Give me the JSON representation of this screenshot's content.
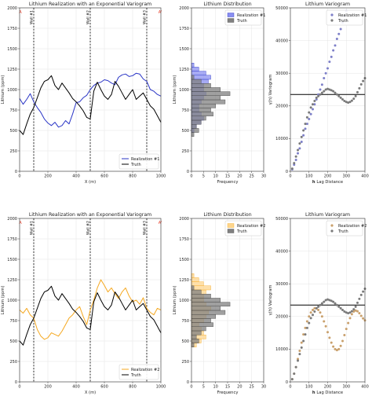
{
  "colors": {
    "truth": "#000000",
    "truth_hist": "#808080",
    "real1": "#2a35c6",
    "real1_hist": "#8a8ff0",
    "real1_vario": "#7d7fc8",
    "real2": "#f5a820",
    "real2_hist": "#fdd58d",
    "real2_vario": "#c9a06c",
    "truth_vario": "#7a7a7a",
    "well_marker": "#e8402a"
  },
  "chart_data": [
    {
      "type": "line",
      "title": "Lithium Realization with an Exponential Variogram",
      "xlabel": "X (m)",
      "ylabel": "Lithium (ppm)",
      "xlim": [
        0,
        1000
      ],
      "ylim": [
        0,
        2000
      ],
      "xticks": [
        "0",
        "200",
        "400",
        "600",
        "800",
        "1000"
      ],
      "yticks": [
        "0",
        "250",
        "500",
        "750",
        "1000",
        "1250",
        "1500",
        "1750",
        "2000"
      ],
      "grid": true,
      "legend": "lower-right",
      "wells": [
        {
          "x": 100,
          "label": "Well #1"
        },
        {
          "x": 500,
          "label": "Well #2"
        },
        {
          "x": 900,
          "label": "Well #3"
        }
      ],
      "well_markers": [
        {
          "x": 5,
          "y": 1950,
          "label": "A"
        },
        {
          "x": 995,
          "y": 1950,
          "label": "A'"
        }
      ],
      "series": [
        {
          "name": "Realization #1",
          "x": [
            0,
            25,
            50,
            75,
            100,
            125,
            150,
            175,
            200,
            225,
            250,
            275,
            300,
            325,
            350,
            375,
            400,
            425,
            450,
            475,
            500,
            525,
            550,
            575,
            600,
            625,
            650,
            675,
            700,
            725,
            750,
            775,
            800,
            825,
            850,
            875,
            900,
            925,
            950,
            975,
            1000
          ],
          "y": [
            890,
            820,
            880,
            950,
            850,
            780,
            720,
            640,
            590,
            560,
            600,
            540,
            560,
            620,
            580,
            700,
            840,
            850,
            900,
            930,
            1000,
            1050,
            1080,
            1090,
            1120,
            1110,
            1080,
            1060,
            1150,
            1180,
            1190,
            1160,
            1170,
            1200,
            1190,
            1130,
            1100,
            1000,
            980,
            940,
            920
          ]
        },
        {
          "name": "Truth",
          "x": [
            0,
            25,
            50,
            75,
            100,
            125,
            150,
            175,
            200,
            225,
            250,
            275,
            300,
            325,
            350,
            375,
            400,
            425,
            450,
            475,
            500,
            525,
            550,
            575,
            600,
            625,
            650,
            675,
            700,
            725,
            750,
            775,
            800,
            825,
            850,
            875,
            900,
            925,
            950,
            975,
            1000
          ],
          "y": [
            500,
            450,
            580,
            700,
            780,
            900,
            1020,
            1100,
            1120,
            1170,
            1050,
            1000,
            1080,
            1020,
            960,
            890,
            850,
            800,
            740,
            660,
            640,
            980,
            1090,
            1000,
            920,
            880,
            940,
            1100,
            1040,
            960,
            880,
            940,
            1000,
            880,
            920,
            960,
            880,
            800,
            760,
            680,
            600
          ]
        }
      ]
    },
    {
      "type": "bar",
      "title": "Lithium Distribution",
      "xlabel": "Frequency",
      "ylabel": "Lithium (ppm)",
      "xlim": [
        0,
        30
      ],
      "ylim": [
        0,
        2000
      ],
      "xticks": [
        "0",
        "5",
        "10",
        "15",
        "20",
        "25",
        "30"
      ],
      "yticks": [
        "0",
        "250",
        "500",
        "750",
        "1000",
        "1250",
        "1500",
        "1750",
        "2000"
      ],
      "legend": "top-right",
      "bin_width": 50,
      "series": [
        {
          "name": "Realization #1",
          "bins": [
            500,
            550,
            600,
            650,
            700,
            750,
            800,
            850,
            900,
            950,
            1000,
            1050,
            1100,
            1150,
            1200,
            1250,
            1300
          ],
          "counts": [
            1,
            2,
            4,
            5,
            4,
            3,
            3,
            4,
            5,
            6,
            5,
            5,
            7,
            8,
            6,
            3,
            1
          ]
        },
        {
          "name": "Truth",
          "bins": [
            450,
            500,
            550,
            600,
            650,
            700,
            750,
            800,
            850,
            900,
            950,
            1000,
            1050,
            1100,
            1150
          ],
          "counts": [
            1,
            3,
            2,
            4,
            6,
            9,
            8,
            10,
            14,
            12,
            16,
            12,
            8,
            4,
            1
          ]
        }
      ]
    },
    {
      "type": "scatter",
      "title": "Lithium Variogram",
      "xlabel": "Lag Distance",
      "xlabel_prefix": "h",
      "ylabel": "γ(h) Variogram",
      "xlim": [
        0,
        400
      ],
      "ylim": [
        0,
        50000
      ],
      "xticks": [
        "0",
        "100",
        "200",
        "300",
        "400"
      ],
      "yticks": [
        "0",
        "10000",
        "20000",
        "30000",
        "40000",
        "50000"
      ],
      "sill": 23500,
      "legend": "top-right",
      "series": [
        {
          "name": "Realization #1",
          "x": [
            10,
            20,
            30,
            40,
            50,
            60,
            70,
            80,
            90,
            100,
            110,
            120,
            130,
            140,
            150,
            160,
            170,
            180,
            190,
            200,
            210,
            220,
            230,
            240,
            250,
            260,
            270,
            280,
            290,
            300
          ],
          "y": [
            600,
            2000,
            3500,
            5500,
            7000,
            9000,
            11000,
            13000,
            14500,
            16000,
            17500,
            19000,
            20500,
            22000,
            23500,
            25000,
            26500,
            28500,
            30000,
            31500,
            33500,
            35000,
            37000,
            38500,
            40500,
            42000,
            43500,
            45500,
            47500,
            49000
          ]
        },
        {
          "name": "Truth",
          "x": [
            10,
            20,
            30,
            40,
            50,
            60,
            70,
            80,
            90,
            100,
            110,
            120,
            130,
            140,
            150,
            160,
            170,
            180,
            190,
            200,
            210,
            220,
            230,
            240,
            250,
            260,
            270,
            280,
            290,
            300,
            310,
            320,
            330,
            340,
            350,
            360,
            370,
            380,
            390,
            400
          ],
          "y": [
            800,
            2500,
            4500,
            6500,
            8500,
            10500,
            12500,
            14500,
            16500,
            18000,
            19500,
            20500,
            21500,
            22500,
            23000,
            23500,
            24000,
            24500,
            25000,
            25200,
            25000,
            24800,
            24500,
            24000,
            23500,
            23000,
            22500,
            22000,
            21500,
            21200,
            21000,
            21200,
            21600,
            22200,
            23000,
            24200,
            25400,
            26600,
            27600,
            28500
          ]
        }
      ]
    },
    {
      "type": "line",
      "title": "Lithium Realization with an Exponential Variogram",
      "xlabel": "X (m)",
      "ylabel": "Lithium (ppm)",
      "xlim": [
        0,
        1000
      ],
      "ylim": [
        0,
        2000
      ],
      "xticks": [
        "0",
        "200",
        "400",
        "600",
        "800",
        "1000"
      ],
      "yticks": [
        "0",
        "250",
        "500",
        "750",
        "1000",
        "1250",
        "1500",
        "1750",
        "2000"
      ],
      "grid": true,
      "legend": "lower-right",
      "wells": [
        {
          "x": 100,
          "label": "Well #1"
        },
        {
          "x": 500,
          "label": "Well #2"
        },
        {
          "x": 900,
          "label": "Well #3"
        }
      ],
      "well_markers": [
        {
          "x": 5,
          "y": 1950,
          "label": "A"
        },
        {
          "x": 995,
          "y": 1950,
          "label": "A'"
        }
      ],
      "series": [
        {
          "name": "Realization #2",
          "x": [
            0,
            25,
            50,
            75,
            100,
            125,
            150,
            175,
            200,
            225,
            250,
            275,
            300,
            325,
            350,
            375,
            400,
            425,
            450,
            475,
            500,
            525,
            550,
            575,
            600,
            625,
            650,
            675,
            700,
            725,
            750,
            775,
            800,
            825,
            850,
            875,
            900,
            925,
            950,
            975,
            1000
          ],
          "y": [
            880,
            840,
            900,
            820,
            780,
            640,
            560,
            520,
            540,
            600,
            580,
            560,
            620,
            700,
            780,
            820,
            880,
            920,
            800,
            700,
            880,
            1000,
            1150,
            1250,
            1180,
            1100,
            1150,
            1080,
            1020,
            1100,
            1150,
            1050,
            980,
            1000,
            950,
            1030,
            900,
            850,
            820,
            900,
            880
          ]
        },
        {
          "name": "Truth",
          "x": [
            0,
            25,
            50,
            75,
            100,
            125,
            150,
            175,
            200,
            225,
            250,
            275,
            300,
            325,
            350,
            375,
            400,
            425,
            450,
            475,
            500,
            525,
            550,
            575,
            600,
            625,
            650,
            675,
            700,
            725,
            750,
            775,
            800,
            825,
            850,
            875,
            900,
            925,
            950,
            975,
            1000
          ],
          "y": [
            500,
            450,
            580,
            700,
            780,
            900,
            1020,
            1100,
            1120,
            1170,
            1050,
            1000,
            1080,
            1020,
            960,
            890,
            850,
            800,
            740,
            660,
            640,
            980,
            1090,
            1000,
            920,
            880,
            940,
            1100,
            1040,
            960,
            880,
            940,
            1000,
            880,
            920,
            960,
            880,
            800,
            760,
            680,
            600
          ]
        }
      ]
    },
    {
      "type": "bar",
      "title": "Lithium Distribution",
      "xlabel": "Frequency",
      "ylabel": "Lithium (ppm)",
      "xlim": [
        0,
        30
      ],
      "ylim": [
        0,
        2000
      ],
      "xticks": [
        "0",
        "5",
        "10",
        "15",
        "20",
        "25",
        "30"
      ],
      "yticks": [
        "0",
        "250",
        "500",
        "750",
        "1000",
        "1250",
        "1500",
        "1750",
        "2000"
      ],
      "legend": "top-right",
      "bin_width": 50,
      "series": [
        {
          "name": "Realization #2",
          "bins": [
            450,
            500,
            550,
            600,
            650,
            700,
            750,
            800,
            850,
            900,
            950,
            1000,
            1050,
            1100,
            1150,
            1200,
            1250,
            1300
          ],
          "counts": [
            2,
            4,
            6,
            5,
            4,
            3,
            5,
            6,
            7,
            8,
            6,
            5,
            5,
            6,
            8,
            5,
            3,
            1
          ]
        },
        {
          "name": "Truth",
          "bins": [
            450,
            500,
            550,
            600,
            650,
            700,
            750,
            800,
            850,
            900,
            950,
            1000,
            1050,
            1100,
            1150
          ],
          "counts": [
            1,
            3,
            2,
            4,
            6,
            9,
            8,
            10,
            14,
            12,
            16,
            12,
            8,
            4,
            1
          ]
        }
      ]
    },
    {
      "type": "scatter",
      "title": "Lithium Variogram",
      "xlabel": "Lag Distance",
      "xlabel_prefix": "h",
      "ylabel": "γ(h) Variogram",
      "xlim": [
        0,
        400
      ],
      "ylim": [
        0,
        50000
      ],
      "xticks": [
        "0",
        "100",
        "200",
        "300",
        "400"
      ],
      "yticks": [
        "0",
        "10000",
        "20000",
        "30000",
        "40000",
        "50000"
      ],
      "sill": 23500,
      "legend": "top-right",
      "series": [
        {
          "name": "Realization #2",
          "x": [
            10,
            20,
            30,
            40,
            50,
            60,
            70,
            80,
            90,
            100,
            110,
            120,
            130,
            140,
            150,
            160,
            170,
            180,
            190,
            200,
            210,
            220,
            230,
            240,
            250,
            260,
            270,
            280,
            290,
            300,
            310,
            320,
            330,
            340,
            350,
            360,
            370,
            380,
            390,
            400
          ],
          "y": [
            800,
            2500,
            4500,
            7000,
            9500,
            12000,
            14500,
            16500,
            18500,
            20000,
            21200,
            22000,
            22500,
            22500,
            22000,
            21200,
            20000,
            18500,
            17000,
            15200,
            13500,
            12000,
            10800,
            10000,
            9700,
            10000,
            11000,
            12500,
            14300,
            16200,
            18000,
            19500,
            20700,
            21500,
            21800,
            21600,
            21000,
            20200,
            19400,
            18800
          ]
        },
        {
          "name": "Truth",
          "x": [
            10,
            20,
            30,
            40,
            50,
            60,
            70,
            80,
            90,
            100,
            110,
            120,
            130,
            140,
            150,
            160,
            170,
            180,
            190,
            200,
            210,
            220,
            230,
            240,
            250,
            260,
            270,
            280,
            290,
            300,
            310,
            320,
            330,
            340,
            350,
            360,
            370,
            380,
            390,
            400
          ],
          "y": [
            800,
            2500,
            4500,
            6500,
            8500,
            10500,
            12500,
            14500,
            16500,
            18000,
            19500,
            20500,
            21500,
            22500,
            23000,
            23500,
            24000,
            24500,
            25000,
            25200,
            25000,
            24800,
            24500,
            24000,
            23500,
            23000,
            22500,
            22000,
            21500,
            21200,
            21000,
            21200,
            21600,
            22200,
            23000,
            24200,
            25400,
            26600,
            27600,
            28500
          ]
        }
      ]
    }
  ]
}
